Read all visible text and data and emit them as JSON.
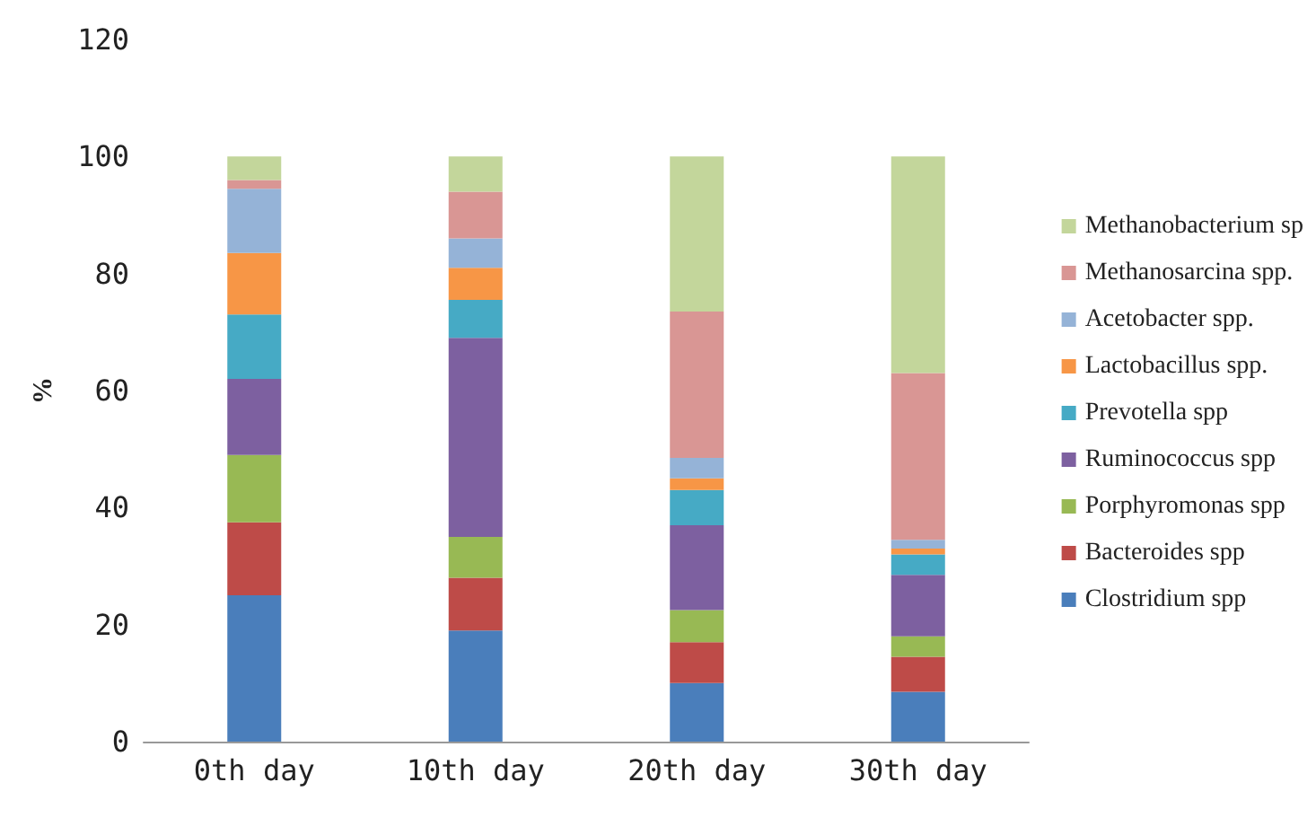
{
  "chart_data": {
    "type": "bar",
    "stacked": true,
    "ylabel": "%",
    "categories": [
      "0th day",
      "10th day",
      "20th day",
      "30th day"
    ],
    "series": [
      {
        "name": "Clostridium spp",
        "color": "#4a7ebb",
        "values": [
          25,
          19,
          10,
          8.5
        ]
      },
      {
        "name": "Bacteroides spp",
        "color": "#be4b48",
        "values": [
          12.5,
          9,
          7,
          6
        ]
      },
      {
        "name": "Porphyromonas spp",
        "color": "#98b954",
        "values": [
          11.5,
          7,
          5.5,
          3.5
        ]
      },
      {
        "name": "Ruminococcus spp",
        "color": "#7d60a0",
        "values": [
          13,
          34,
          14.5,
          10.5
        ]
      },
      {
        "name": "Prevotella spp",
        "color": "#46aac5",
        "values": [
          11,
          6.5,
          6,
          3.5
        ]
      },
      {
        "name": "Lactobacillus spp.",
        "color": "#f79646",
        "values": [
          10.5,
          5.5,
          2,
          1
        ]
      },
      {
        "name": "Acetobacter spp.",
        "color": "#95b3d7",
        "values": [
          11,
          5,
          3.5,
          1.5
        ]
      },
      {
        "name": "Methanosarcina spp.",
        "color": "#d99694",
        "values": [
          1.5,
          8,
          25,
          28.5
        ]
      },
      {
        "name": "Methanobacterium sp",
        "color": "#c3d69b",
        "values": [
          4,
          6,
          26.5,
          37
        ]
      }
    ],
    "ylim": [
      0,
      120
    ],
    "yticks": [
      0,
      20,
      40,
      60,
      80,
      100,
      120
    ],
    "grid": false,
    "legend": "right"
  }
}
